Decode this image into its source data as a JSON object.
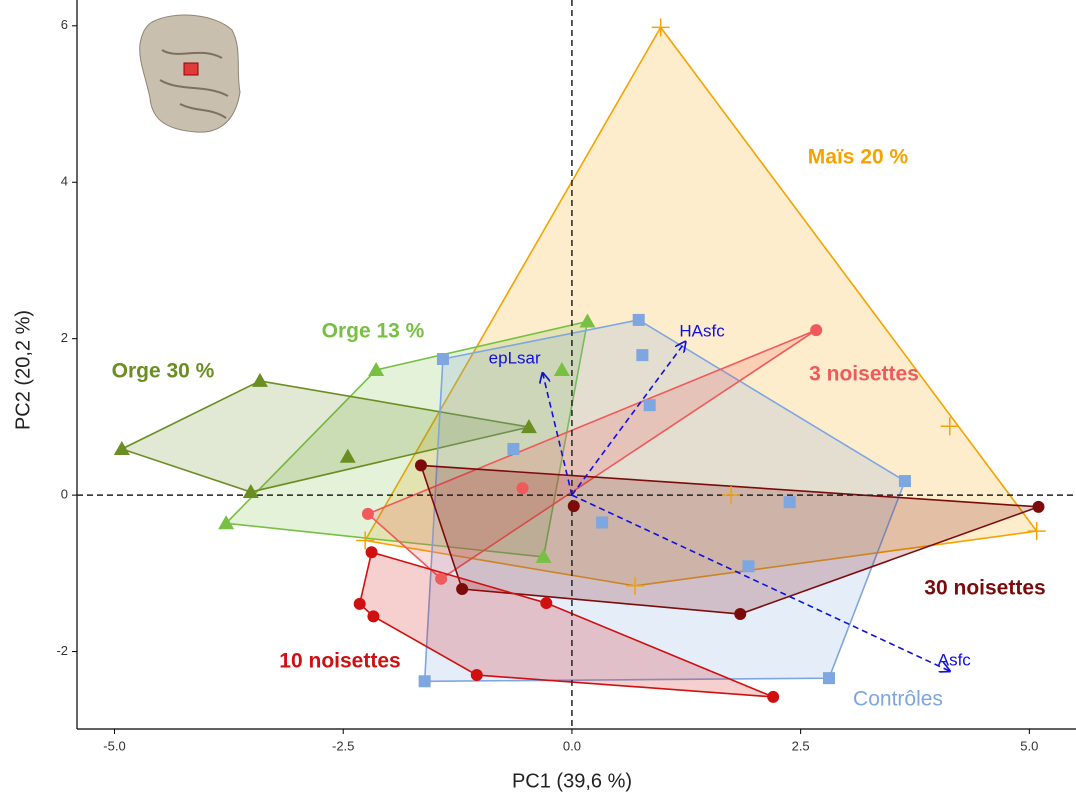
{
  "chart_data": {
    "type": "scatter",
    "xlabel": "PC1 (39,6 %)",
    "ylabel": "PC2 (20,2 %)",
    "xlim": [
      -5.41,
      5.51
    ],
    "ylim": [
      -2.99,
      6.33
    ],
    "xticks": [
      {
        "value": -5,
        "label": "-5.0"
      },
      -2.5,
      {
        "value": 0,
        "label": "0.0"
      },
      2.5,
      {
        "value": 5,
        "label": "5.0"
      }
    ],
    "yticks": [
      -2,
      0,
      2,
      4,
      6
    ],
    "series": [
      {
        "name": "Maïs 20 %",
        "color": "#f5a300",
        "marker": "plus",
        "x": [
          0.97,
          4.13,
          1.74,
          5.08,
          0.69,
          -2.26
        ],
        "y": [
          5.98,
          0.88,
          0.0,
          -0.46,
          -1.16,
          -0.58
        ]
      },
      {
        "name": "Orge 13 %",
        "color": "#77c043",
        "marker": "triangle",
        "x": [
          0.17,
          -2.14,
          -0.11,
          -3.78,
          -0.31
        ],
        "y": [
          2.22,
          1.6,
          1.6,
          -0.36,
          -0.79
        ]
      },
      {
        "name": "Orge 30 %",
        "color": "#6b8e23",
        "marker": "triangle",
        "x": [
          -4.92,
          -3.41,
          -0.47,
          -2.45,
          -3.51
        ],
        "y": [
          0.59,
          1.46,
          0.87,
          0.49,
          0.04
        ]
      },
      {
        "name": "Contrôles",
        "color": "#7ea6e0",
        "marker": "square",
        "x": [
          0.73,
          -1.41,
          0.77,
          0.85,
          -0.64,
          3.64,
          2.38,
          0.33,
          1.93,
          2.81,
          -1.61
        ],
        "y": [
          2.24,
          1.74,
          1.79,
          1.15,
          0.59,
          0.18,
          -0.09,
          -0.35,
          -0.91,
          -2.34,
          -2.38
        ]
      },
      {
        "name": "3 noisettes",
        "color": "#f05a5a",
        "marker": "circle",
        "x": [
          2.67,
          -0.54,
          -2.23,
          -1.43
        ],
        "y": [
          2.11,
          0.09,
          -0.24,
          -1.07
        ]
      },
      {
        "name": "30 noisettes",
        "color": "#7b0c0c",
        "marker": "circle",
        "x": [
          -1.65,
          5.1,
          0.02,
          -1.2,
          1.84
        ],
        "y": [
          0.38,
          -0.15,
          -0.14,
          -1.2,
          -1.52
        ]
      },
      {
        "name": "10 noisettes",
        "color": "#d01010",
        "marker": "circle",
        "x": [
          -2.19,
          -0.28,
          -2.32,
          -2.17,
          -1.04,
          2.2
        ],
        "y": [
          -0.73,
          -1.38,
          -1.39,
          -1.55,
          -2.3,
          -2.58
        ]
      }
    ],
    "loadings": [
      {
        "name": "HAsfc",
        "x": 1.24,
        "y": 1.96
      },
      {
        "name": "epLsar",
        "x": -0.32,
        "y": 1.56
      },
      {
        "name": "Asfc",
        "x": 4.13,
        "y": -2.25
      }
    ],
    "loading_color": "#1010e0"
  }
}
